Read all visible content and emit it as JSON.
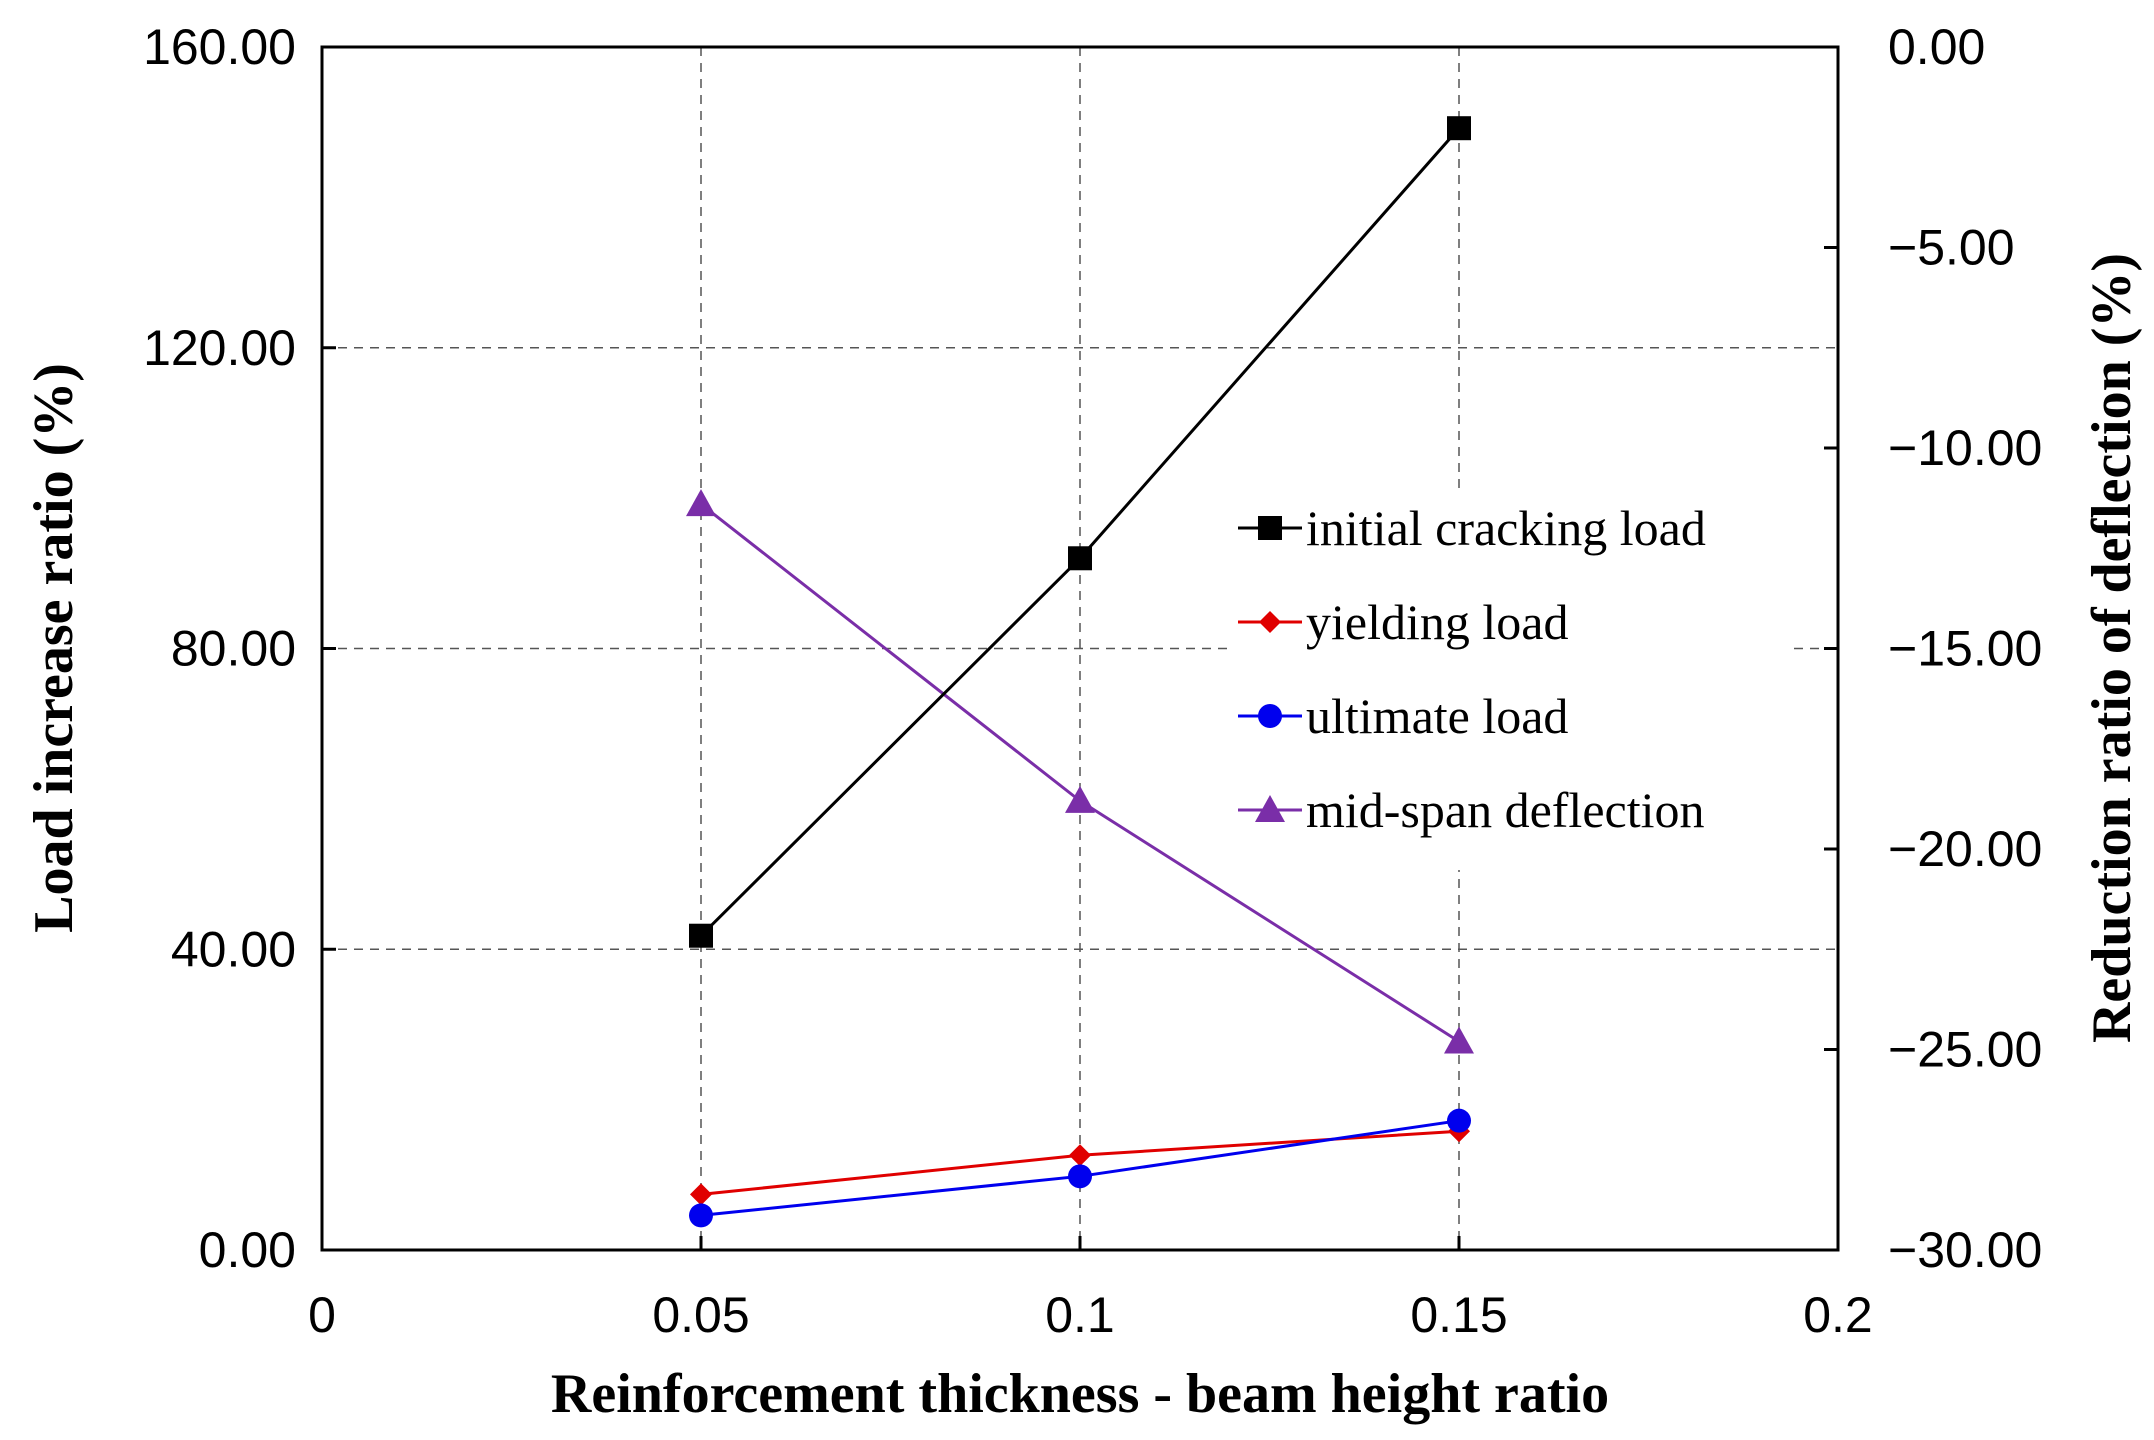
{
  "chart_data": {
    "type": "line",
    "title": "",
    "xlabel": "Reinforcement thickness - beam height ratio",
    "ylabel": "Load increase ratio (%)",
    "y2label": "Reduction ratio of deflection (%)",
    "xlim": [
      0,
      0.2
    ],
    "ylim": [
      0,
      160
    ],
    "y2lim": [
      -30,
      0
    ],
    "x_ticks": [
      "0",
      "0.05",
      "0.1",
      "0.15",
      "0.2"
    ],
    "y_ticks": [
      "0.00",
      "40.00",
      "80.00",
      "120.00",
      "160.00"
    ],
    "y2_ticks": [
      "-30.00",
      "-25.00",
      "-20.00",
      "-15.00",
      "-10.00",
      "-5.00",
      "0.00"
    ],
    "grid": true,
    "legend_position": "center-right",
    "series": [
      {
        "name": "initial cracking load",
        "axis": "left",
        "color": "#000000",
        "marker": "square",
        "x": [
          0.05,
          0.1,
          0.15
        ],
        "values": [
          41.8,
          92.0,
          149.2
        ]
      },
      {
        "name": "yielding load",
        "axis": "left",
        "color": "#e00000",
        "marker": "diamond",
        "x": [
          0.05,
          0.1,
          0.15
        ],
        "values": [
          7.4,
          12.6,
          15.8
        ]
      },
      {
        "name": "ultimate load",
        "axis": "left",
        "color": "#0000ee",
        "marker": "circle",
        "x": [
          0.05,
          0.1,
          0.15
        ],
        "values": [
          4.6,
          9.8,
          17.2
        ]
      },
      {
        "name": "mid-span deflection",
        "axis": "right",
        "color": "#7a2ea8",
        "marker": "triangle",
        "x": [
          0.05,
          0.1,
          0.15
        ],
        "values": [
          -11.4,
          -18.8,
          -24.8
        ]
      }
    ]
  }
}
